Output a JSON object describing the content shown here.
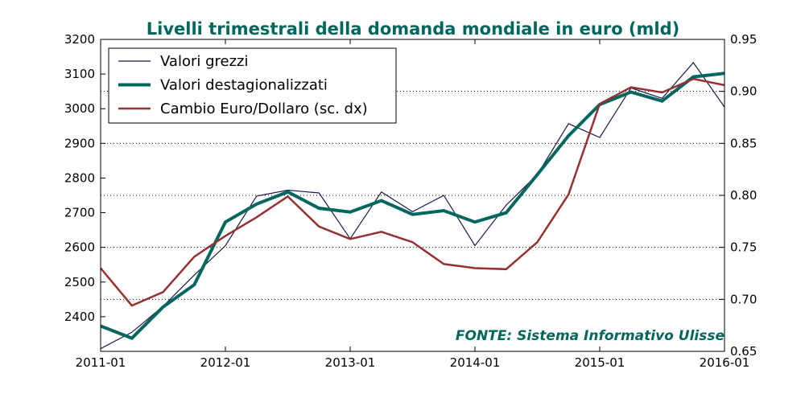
{
  "chart_data": {
    "type": "line",
    "title": "Livelli trimestrali della domanda mondiale in euro (mld)",
    "x": [
      "2011-01",
      "2011-04",
      "2011-07",
      "2011-10",
      "2012-01",
      "2012-04",
      "2012-07",
      "2012-10",
      "2013-01",
      "2013-04",
      "2013-07",
      "2013-10",
      "2014-01",
      "2014-04",
      "2014-07",
      "2014-10",
      "2015-01",
      "2015-04",
      "2015-07",
      "2015-10",
      "2016-01"
    ],
    "x_tick_labels": [
      "2011-01",
      "2012-01",
      "2013-01",
      "2014-01",
      "2015-01",
      "2016-01"
    ],
    "y_left": {
      "ylim": [
        2300,
        3200
      ],
      "ticks": [
        2400,
        2500,
        2600,
        2700,
        2800,
        2900,
        3000,
        3100,
        3200
      ]
    },
    "y_right": {
      "ylim": [
        0.65,
        0.95
      ],
      "ticks": [
        0.65,
        0.7,
        0.75,
        0.8,
        0.85,
        0.9,
        0.95
      ]
    },
    "grid": "horizontal dotted at right-axis ticks",
    "legend_position": "top-left",
    "series": [
      {
        "name": "Valori grezzi",
        "axis": "left",
        "color": "#1a1a4e",
        "values": [
          2308,
          2355,
          2430,
          2520,
          2605,
          2748,
          2765,
          2757,
          2625,
          2760,
          2703,
          2750,
          2605,
          2722,
          2810,
          2957,
          2917,
          3060,
          3030,
          3133,
          3005
        ]
      },
      {
        "name": "Valori destagionalizzati",
        "axis": "left",
        "color": "#00665e",
        "values": [
          2373,
          2338,
          2428,
          2492,
          2673,
          2725,
          2760,
          2713,
          2702,
          2735,
          2695,
          2706,
          2673,
          2700,
          2810,
          2922,
          3012,
          3048,
          3022,
          3092,
          3102
        ]
      },
      {
        "name": "Cambio Euro/Dollaro (sc. dx)",
        "axis": "right",
        "color": "#943232",
        "values": [
          0.73,
          0.694,
          0.707,
          0.741,
          0.761,
          0.779,
          0.799,
          0.77,
          0.758,
          0.765,
          0.755,
          0.734,
          0.73,
          0.729,
          0.755,
          0.801,
          0.888,
          0.904,
          0.899,
          0.912,
          0.906
        ]
      }
    ],
    "source": "FONTE: Sistema Informativo Ulisse",
    "colors": {
      "title": "#00665e",
      "source": "#00665e"
    }
  }
}
